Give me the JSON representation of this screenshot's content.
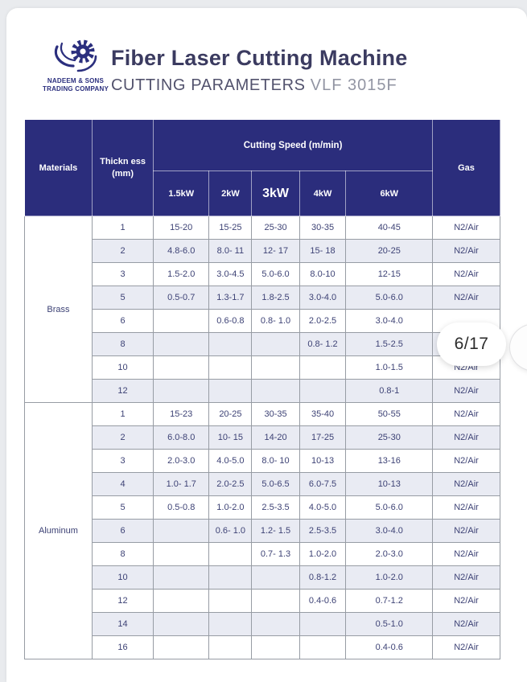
{
  "header": {
    "logo": {
      "company_line1": "NADEEM & SONS",
      "company_line2": "TRADING COMPANY"
    },
    "title": "Fiber Laser Cutting Machine",
    "subtitle": "CUTTING PARAMETERS",
    "model": "VLF 3015F"
  },
  "overlay": {
    "page_indicator": "6/17"
  },
  "colors": {
    "header_navy": "#2b2d7c",
    "shaded_row": "#e9ebf3",
    "body_text": "#3d4275",
    "title_text": "#3b3b60"
  },
  "table": {
    "col_materials": "Materials",
    "col_thickness_line1": "Thickn ess",
    "col_thickness_line2": "(mm)",
    "col_speed_group": "Cutting Speed (m/min)",
    "power_columns": [
      "1.5kW",
      "2kW",
      "3kW",
      "4kW",
      "6kW"
    ],
    "col_gas": "Gas",
    "sections": [
      {
        "material": "Brass",
        "rows": [
          {
            "thickness": "1",
            "speeds": [
              "15-20",
              "15-25",
              "25-30",
              "30-35",
              "40-45"
            ],
            "gas": "N2/Air"
          },
          {
            "thickness": "2",
            "speeds": [
              "4.8-6.0",
              "8.0- 11",
              "12- 17",
              "15- 18",
              "20-25"
            ],
            "gas": "N2/Air"
          },
          {
            "thickness": "3",
            "speeds": [
              "1.5-2.0",
              "3.0-4.5",
              "5.0-6.0",
              "8.0-10",
              "12-15"
            ],
            "gas": "N2/Air"
          },
          {
            "thickness": "5",
            "speeds": [
              "0.5-0.7",
              "1.3-1.7",
              "1.8-2.5",
              "3.0-4.0",
              "5.0-6.0"
            ],
            "gas": "N2/Air"
          },
          {
            "thickness": "6",
            "speeds": [
              "",
              "0.6-0.8",
              "0.8- 1.0",
              "2.0-2.5",
              "3.0-4.0"
            ],
            "gas": ""
          },
          {
            "thickness": "8",
            "speeds": [
              "",
              "",
              "",
              "0.8- 1.2",
              "1.5-2.5"
            ],
            "gas": ""
          },
          {
            "thickness": "10",
            "speeds": [
              "",
              "",
              "",
              "",
              "1.0-1.5"
            ],
            "gas": "N2/Air"
          },
          {
            "thickness": "12",
            "speeds": [
              "",
              "",
              "",
              "",
              "0.8-1"
            ],
            "gas": "N2/Air"
          }
        ]
      },
      {
        "material": "Aluminum",
        "rows": [
          {
            "thickness": "1",
            "speeds": [
              "15-23",
              "20-25",
              "30-35",
              "35-40",
              "50-55"
            ],
            "gas": "N2/Air"
          },
          {
            "thickness": "2",
            "speeds": [
              "6.0-8.0",
              "10- 15",
              "14-20",
              "17-25",
              "25-30"
            ],
            "gas": "N2/Air"
          },
          {
            "thickness": "3",
            "speeds": [
              "2.0-3.0",
              "4.0-5.0",
              "8.0- 10",
              "10-13",
              "13-16"
            ],
            "gas": "N2/Air"
          },
          {
            "thickness": "4",
            "speeds": [
              "1.0- 1.7",
              "2.0-2.5",
              "5.0-6.5",
              "6.0-7.5",
              "10-13"
            ],
            "gas": "N2/Air"
          },
          {
            "thickness": "5",
            "speeds": [
              "0.5-0.8",
              "1.0-2.0",
              "2.5-3.5",
              "4.0-5.0",
              "5.0-6.0"
            ],
            "gas": "N2/Air"
          },
          {
            "thickness": "6",
            "speeds": [
              "",
              "0.6- 1.0",
              "1.2- 1.5",
              "2.5-3.5",
              "3.0-4.0"
            ],
            "gas": "N2/Air"
          },
          {
            "thickness": "8",
            "speeds": [
              "",
              "",
              "0.7- 1.3",
              "1.0-2.0",
              "2.0-3.0"
            ],
            "gas": "N2/Air"
          },
          {
            "thickness": "10",
            "speeds": [
              "",
              "",
              "",
              "0.8-1.2",
              "1.0-2.0"
            ],
            "gas": "N2/Air"
          },
          {
            "thickness": "12",
            "speeds": [
              "",
              "",
              "",
              "0.4-0.6",
              "0.7-1.2"
            ],
            "gas": "N2/Air"
          },
          {
            "thickness": "14",
            "speeds": [
              "",
              "",
              "",
              "",
              "0.5-1.0"
            ],
            "gas": "N2/Air"
          },
          {
            "thickness": "16",
            "speeds": [
              "",
              "",
              "",
              "",
              "0.4-0.6"
            ],
            "gas": "N2/Air"
          }
        ]
      }
    ]
  }
}
